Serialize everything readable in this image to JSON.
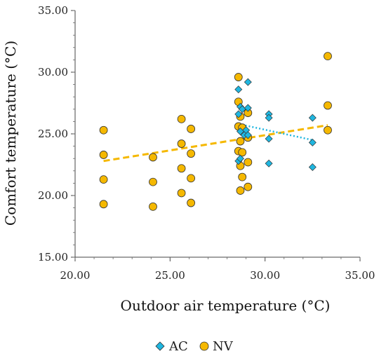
{
  "chart_data": {
    "type": "scatter",
    "title": "",
    "xlabel": "Outdoor air temperature (°C)",
    "ylabel": "Comfort temperature (°C)",
    "xlim": [
      20,
      35
    ],
    "ylim": [
      15,
      35
    ],
    "x_ticks": [
      "20.00",
      "25.00",
      "30.00",
      "35.00"
    ],
    "y_ticks": [
      "15.00",
      "20.00",
      "25.00",
      "30.00",
      "35.00"
    ],
    "grid": false,
    "legend_position": "bottom",
    "series": [
      {
        "name": "AC",
        "marker": "diamond",
        "color": "#1fb6e0",
        "points": [
          [
            28.6,
            28.6
          ],
          [
            28.7,
            27.2
          ],
          [
            28.6,
            26.6
          ],
          [
            28.8,
            27.0
          ],
          [
            29.1,
            29.2
          ],
          [
            29.1,
            27.1
          ],
          [
            29.0,
            25.3
          ],
          [
            28.7,
            25.2
          ],
          [
            28.9,
            24.9
          ],
          [
            28.6,
            22.8
          ],
          [
            28.7,
            23.0
          ],
          [
            29.1,
            24.9
          ],
          [
            30.2,
            26.6
          ],
          [
            30.2,
            26.3
          ],
          [
            30.2,
            24.6
          ],
          [
            30.2,
            22.6
          ],
          [
            32.5,
            26.3
          ],
          [
            32.5,
            24.3
          ],
          [
            32.5,
            22.3
          ]
        ],
        "trendline": {
          "style": "dotted",
          "x": [
            28.6,
            32.5
          ],
          "y": [
            25.8,
            24.5
          ]
        }
      },
      {
        "name": "NV",
        "marker": "circle",
        "color": "#f5b800",
        "points": [
          [
            21.5,
            25.3
          ],
          [
            21.5,
            23.3
          ],
          [
            21.5,
            21.3
          ],
          [
            21.5,
            19.3
          ],
          [
            24.1,
            23.1
          ],
          [
            24.1,
            21.1
          ],
          [
            24.1,
            19.1
          ],
          [
            25.6,
            26.2
          ],
          [
            25.6,
            24.2
          ],
          [
            25.6,
            22.2
          ],
          [
            25.6,
            20.2
          ],
          [
            26.1,
            25.4
          ],
          [
            26.1,
            23.4
          ],
          [
            26.1,
            21.4
          ],
          [
            26.1,
            19.4
          ],
          [
            28.6,
            29.6
          ],
          [
            28.6,
            27.6
          ],
          [
            28.6,
            25.6
          ],
          [
            28.6,
            23.6
          ],
          [
            28.7,
            26.4
          ],
          [
            28.7,
            24.4
          ],
          [
            28.7,
            22.4
          ],
          [
            28.7,
            20.4
          ],
          [
            28.8,
            25.5
          ],
          [
            28.8,
            23.5
          ],
          [
            28.8,
            21.5
          ],
          [
            29.1,
            26.7
          ],
          [
            29.1,
            24.7
          ],
          [
            29.1,
            22.7
          ],
          [
            29.1,
            20.7
          ],
          [
            33.3,
            31.3
          ],
          [
            33.3,
            27.3
          ],
          [
            33.3,
            25.3
          ]
        ],
        "trendline": {
          "style": "dashed",
          "x": [
            21.5,
            33.3
          ],
          "y": [
            22.8,
            25.7
          ]
        }
      }
    ]
  }
}
